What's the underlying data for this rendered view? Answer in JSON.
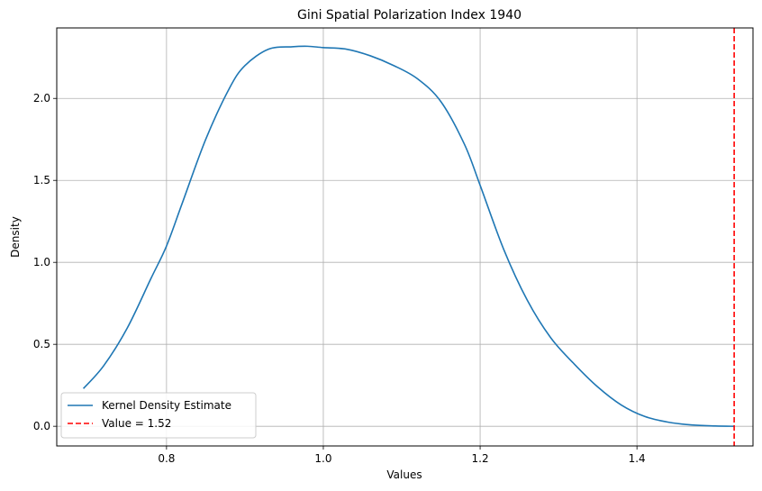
{
  "chart_data": {
    "type": "line",
    "title": "Gini Spatial Polarization Index 1940",
    "xlabel": "Values",
    "ylabel": "Density",
    "xlim": [
      0.66,
      1.548
    ],
    "ylim": [
      -0.12,
      2.43
    ],
    "xticks": [
      0.8,
      1.0,
      1.2,
      1.4
    ],
    "xtick_labels": [
      "0.8",
      "1.0",
      "1.2",
      "1.4"
    ],
    "yticks": [
      0.0,
      0.5,
      1.0,
      1.5,
      2.0
    ],
    "ytick_labels": [
      "0.0",
      "0.5",
      "1.0",
      "1.5",
      "2.0"
    ],
    "grid": true,
    "legend_position": "lower-left",
    "series": [
      {
        "name": "Kernel Density Estimate",
        "color": "#1f77b4",
        "style": "solid",
        "x": [
          0.694,
          0.72,
          0.75,
          0.78,
          0.8,
          0.82,
          0.85,
          0.88,
          0.9,
          0.93,
          0.96,
          0.98,
          1.0,
          1.03,
          1.06,
          1.09,
          1.12,
          1.15,
          1.18,
          1.2,
          1.23,
          1.26,
          1.29,
          1.32,
          1.35,
          1.38,
          1.41,
          1.44,
          1.47,
          1.5,
          1.524
        ],
        "y": [
          0.23,
          0.37,
          0.6,
          0.9,
          1.1,
          1.36,
          1.75,
          2.06,
          2.2,
          2.3,
          2.315,
          2.318,
          2.31,
          2.3,
          2.26,
          2.2,
          2.12,
          1.98,
          1.72,
          1.47,
          1.08,
          0.77,
          0.54,
          0.38,
          0.24,
          0.13,
          0.06,
          0.025,
          0.008,
          0.002,
          0.0
        ]
      }
    ],
    "reference_lines": [
      {
        "name": "Value = 1.52",
        "orientation": "vertical",
        "x": 1.524,
        "color": "#ff0000",
        "style": "dashed"
      }
    ]
  }
}
